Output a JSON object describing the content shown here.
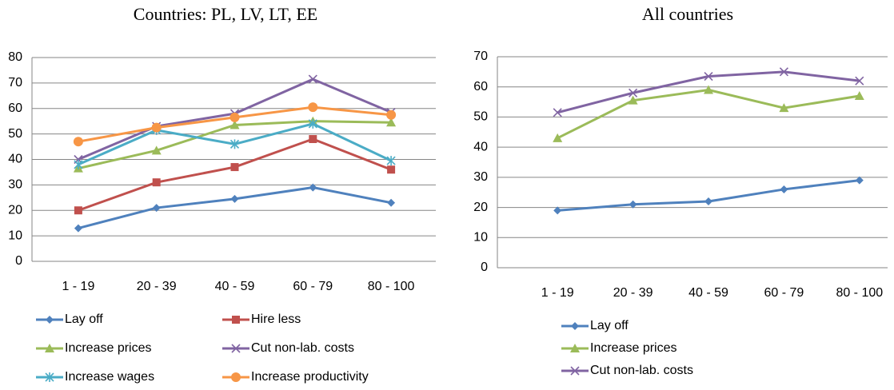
{
  "chart_data": [
    {
      "type": "line",
      "title": "Countries: PL, LV, LT, EE",
      "categories": [
        "1 - 19",
        "20 - 39",
        "40 - 59",
        "60 - 79",
        "80 - 100"
      ],
      "ylim": [
        0,
        80
      ],
      "yticks": [
        0,
        10,
        20,
        30,
        40,
        50,
        60,
        70,
        80
      ],
      "grid": true,
      "series": [
        {
          "name": "Lay off",
          "color": "#4f81bd",
          "marker": "diamond",
          "values": [
            13,
            21,
            24.5,
            29,
            23
          ]
        },
        {
          "name": "Hire less",
          "color": "#c0504d",
          "marker": "square",
          "values": [
            20,
            31,
            37,
            48,
            36
          ]
        },
        {
          "name": "Increase prices",
          "color": "#9bbb59",
          "marker": "triangle",
          "values": [
            36.5,
            43.5,
            53.5,
            55,
            54.5
          ]
        },
        {
          "name": "Cut non-lab. costs",
          "color": "#8064a2",
          "marker": "x",
          "values": [
            40,
            53,
            58,
            71.5,
            58.5
          ]
        },
        {
          "name": "Increase wages",
          "color": "#4bacc6",
          "marker": "star",
          "values": [
            38,
            51.5,
            46,
            54,
            39.5
          ]
        },
        {
          "name": "Increase productivity",
          "color": "#f79646",
          "marker": "circle",
          "values": [
            47,
            52.5,
            56.5,
            60.5,
            57.5
          ]
        }
      ]
    },
    {
      "type": "line",
      "title": "All countries",
      "categories": [
        "1 - 19",
        "20 - 39",
        "40 - 59",
        "60 - 79",
        "80 - 100"
      ],
      "ylim": [
        0,
        70
      ],
      "yticks": [
        0,
        10,
        20,
        30,
        40,
        50,
        60,
        70
      ],
      "grid": true,
      "series": [
        {
          "name": "Lay off",
          "color": "#4f81bd",
          "marker": "diamond",
          "values": [
            19,
            21,
            22,
            26,
            29
          ]
        },
        {
          "name": "Increase prices",
          "color": "#9bbb59",
          "marker": "triangle",
          "values": [
            43,
            55.5,
            59,
            53,
            57
          ]
        },
        {
          "name": "Cut non-lab. costs",
          "color": "#8064a2",
          "marker": "x",
          "values": [
            51.5,
            58,
            63.5,
            65,
            62
          ]
        }
      ]
    }
  ]
}
